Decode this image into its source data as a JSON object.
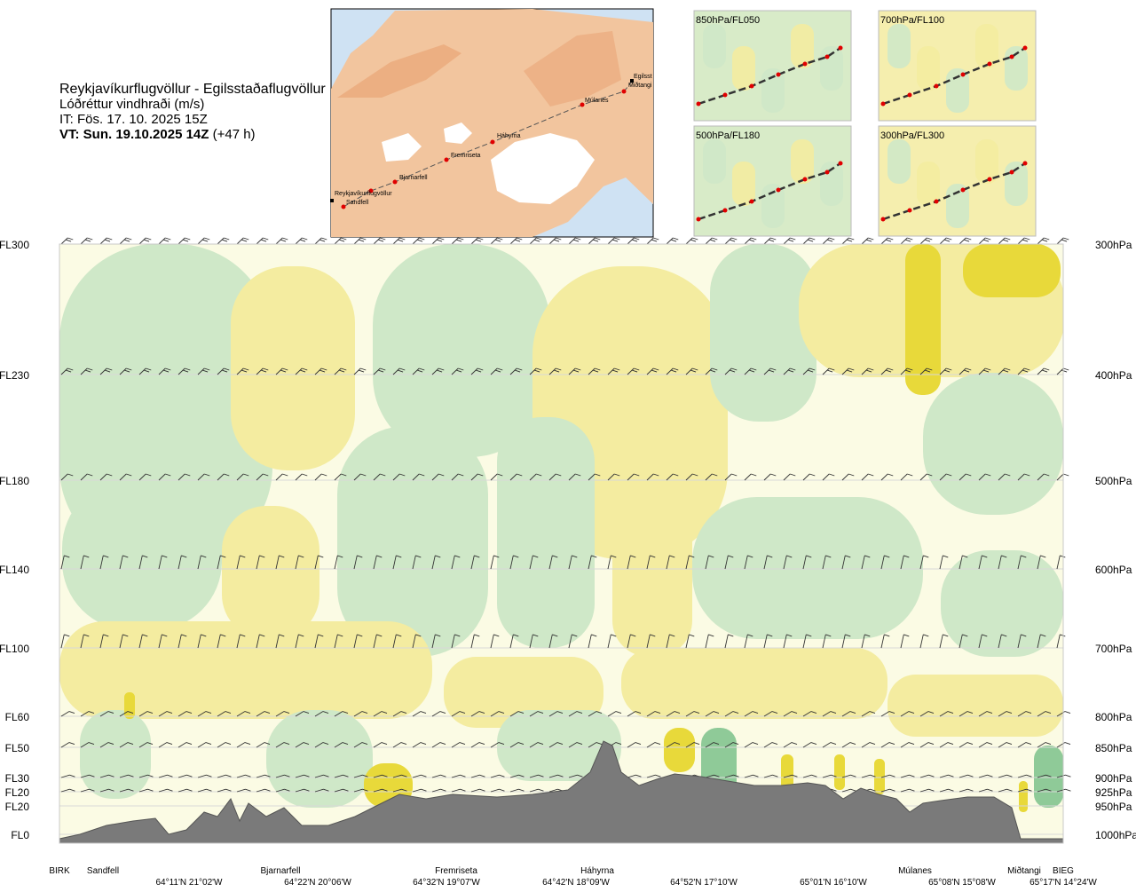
{
  "header": {
    "title": "Reykjavíkurflugvöllur - Egilsstaðaflugvöllur",
    "subtitle": "Lóðréttur vindhraði (m/s)",
    "issue_time": "IT: Fös. 17. 10. 2025 15Z",
    "valid_time": "VT: Sun. 19.10.2025 14Z",
    "lead": "(+47 h)"
  },
  "map": {
    "places": [
      "Reykjavíkurflugvöllur",
      "Sandfell",
      "Bjarnarfell",
      "Fremriseta",
      "Háhyrna",
      "Múlanes",
      "Egilsst",
      "Miðtangi"
    ],
    "colors": {
      "sea": "#cfe2f3",
      "land": "#f2c59e",
      "ice": "#ffffff",
      "route": "#555555",
      "point": "#e00000"
    }
  },
  "insets": [
    {
      "label": "850hPa/FL050"
    },
    {
      "label": "700hPa/FL100"
    },
    {
      "label": "500hPa/FL180"
    },
    {
      "label": "300hPa/FL300"
    }
  ],
  "chart_data": {
    "type": "heatmap",
    "title": "Reykjavíkurflugvöllur - Egilsstaðaflugvöllur",
    "quantity": "Lóðréttur vindhraði (m/s)",
    "y_left_labels": [
      "FL300",
      "FL230",
      "FL180",
      "FL140",
      "FL100",
      "FL60",
      "FL50",
      "FL30",
      "FL20",
      "FL20",
      "FL0"
    ],
    "y_right_labels": [
      "300hPa",
      "400hPa",
      "500hPa",
      "600hPa",
      "700hPa",
      "800hPa",
      "850hPa",
      "900hPa",
      "925hPa",
      "950hPa",
      "1000hPa"
    ],
    "pressure_levels_hPa": [
      300,
      400,
      500,
      600,
      700,
      800,
      850,
      900,
      925,
      950,
      1000
    ],
    "x_waypoints": [
      "BIRK",
      "Sandfell",
      "Bjarnarfell",
      "Fremriseta",
      "Háhyrna",
      "Múlanes",
      "Miðtangi",
      "BIEG"
    ],
    "x_coords": [
      "64°11'N 21°02'W",
      "64°22'N 20°06'W",
      "64°32'N 19°07'W",
      "64°42'N 18°09'W",
      "64°52'N 17°10'W",
      "65°01'N 16°10'W",
      "65°08'N 15°08'W",
      "65°17'N 14°24'W"
    ],
    "colors": {
      "downdraft_weak": "#cfe8c8",
      "downdraft_strong": "#8fca98",
      "updraft_weak": "#f4eca0",
      "updraft_strong": "#e8d93a",
      "near_zero": "#fbfbe4",
      "terrain": "#7a7a7a"
    }
  }
}
